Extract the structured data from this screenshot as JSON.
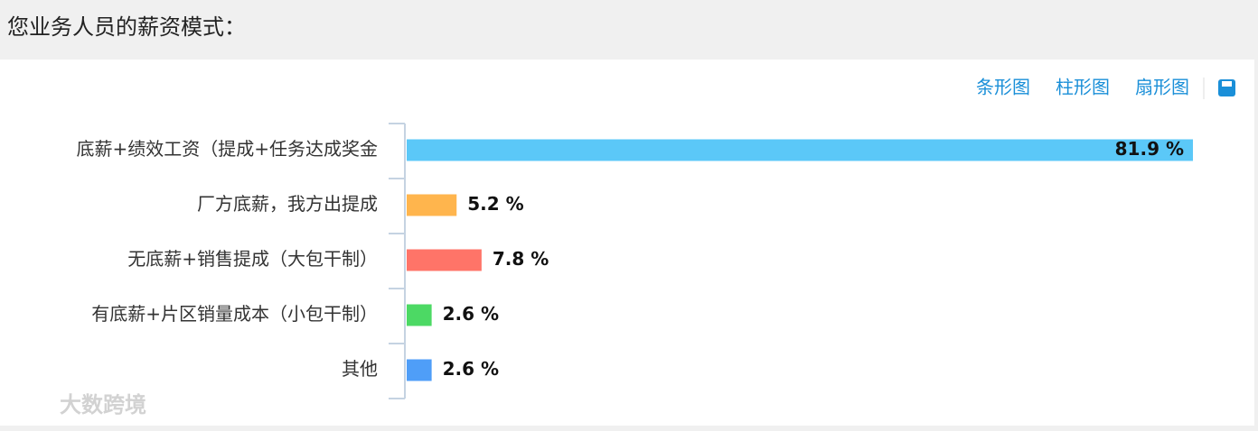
{
  "header": {
    "title": "您业务人员的薪资模式："
  },
  "toolbar": [
    "条形图",
    "柱形图",
    "扇形图"
  ],
  "watermark": "大数跨境",
  "chart_data": {
    "type": "hbar",
    "categories": [
      "底薪+绩效工资（提成+任务达成奖金",
      "厂方底薪，我方出提成",
      "无底薪+销售提成（大包干制）",
      "有底薪+片区销量成本（小包干制）",
      "其他"
    ],
    "values": [
      81.9,
      5.2,
      7.8,
      2.6,
      2.6
    ],
    "value_labels": [
      "81.9 %",
      "5.2 %",
      "7.8 %",
      "2.6 %",
      "2.6 %"
    ],
    "colors": [
      "#5bc8f8",
      "#ffb54d",
      "#ff7468",
      "#4cd964",
      "#4f9ef8"
    ]
  }
}
